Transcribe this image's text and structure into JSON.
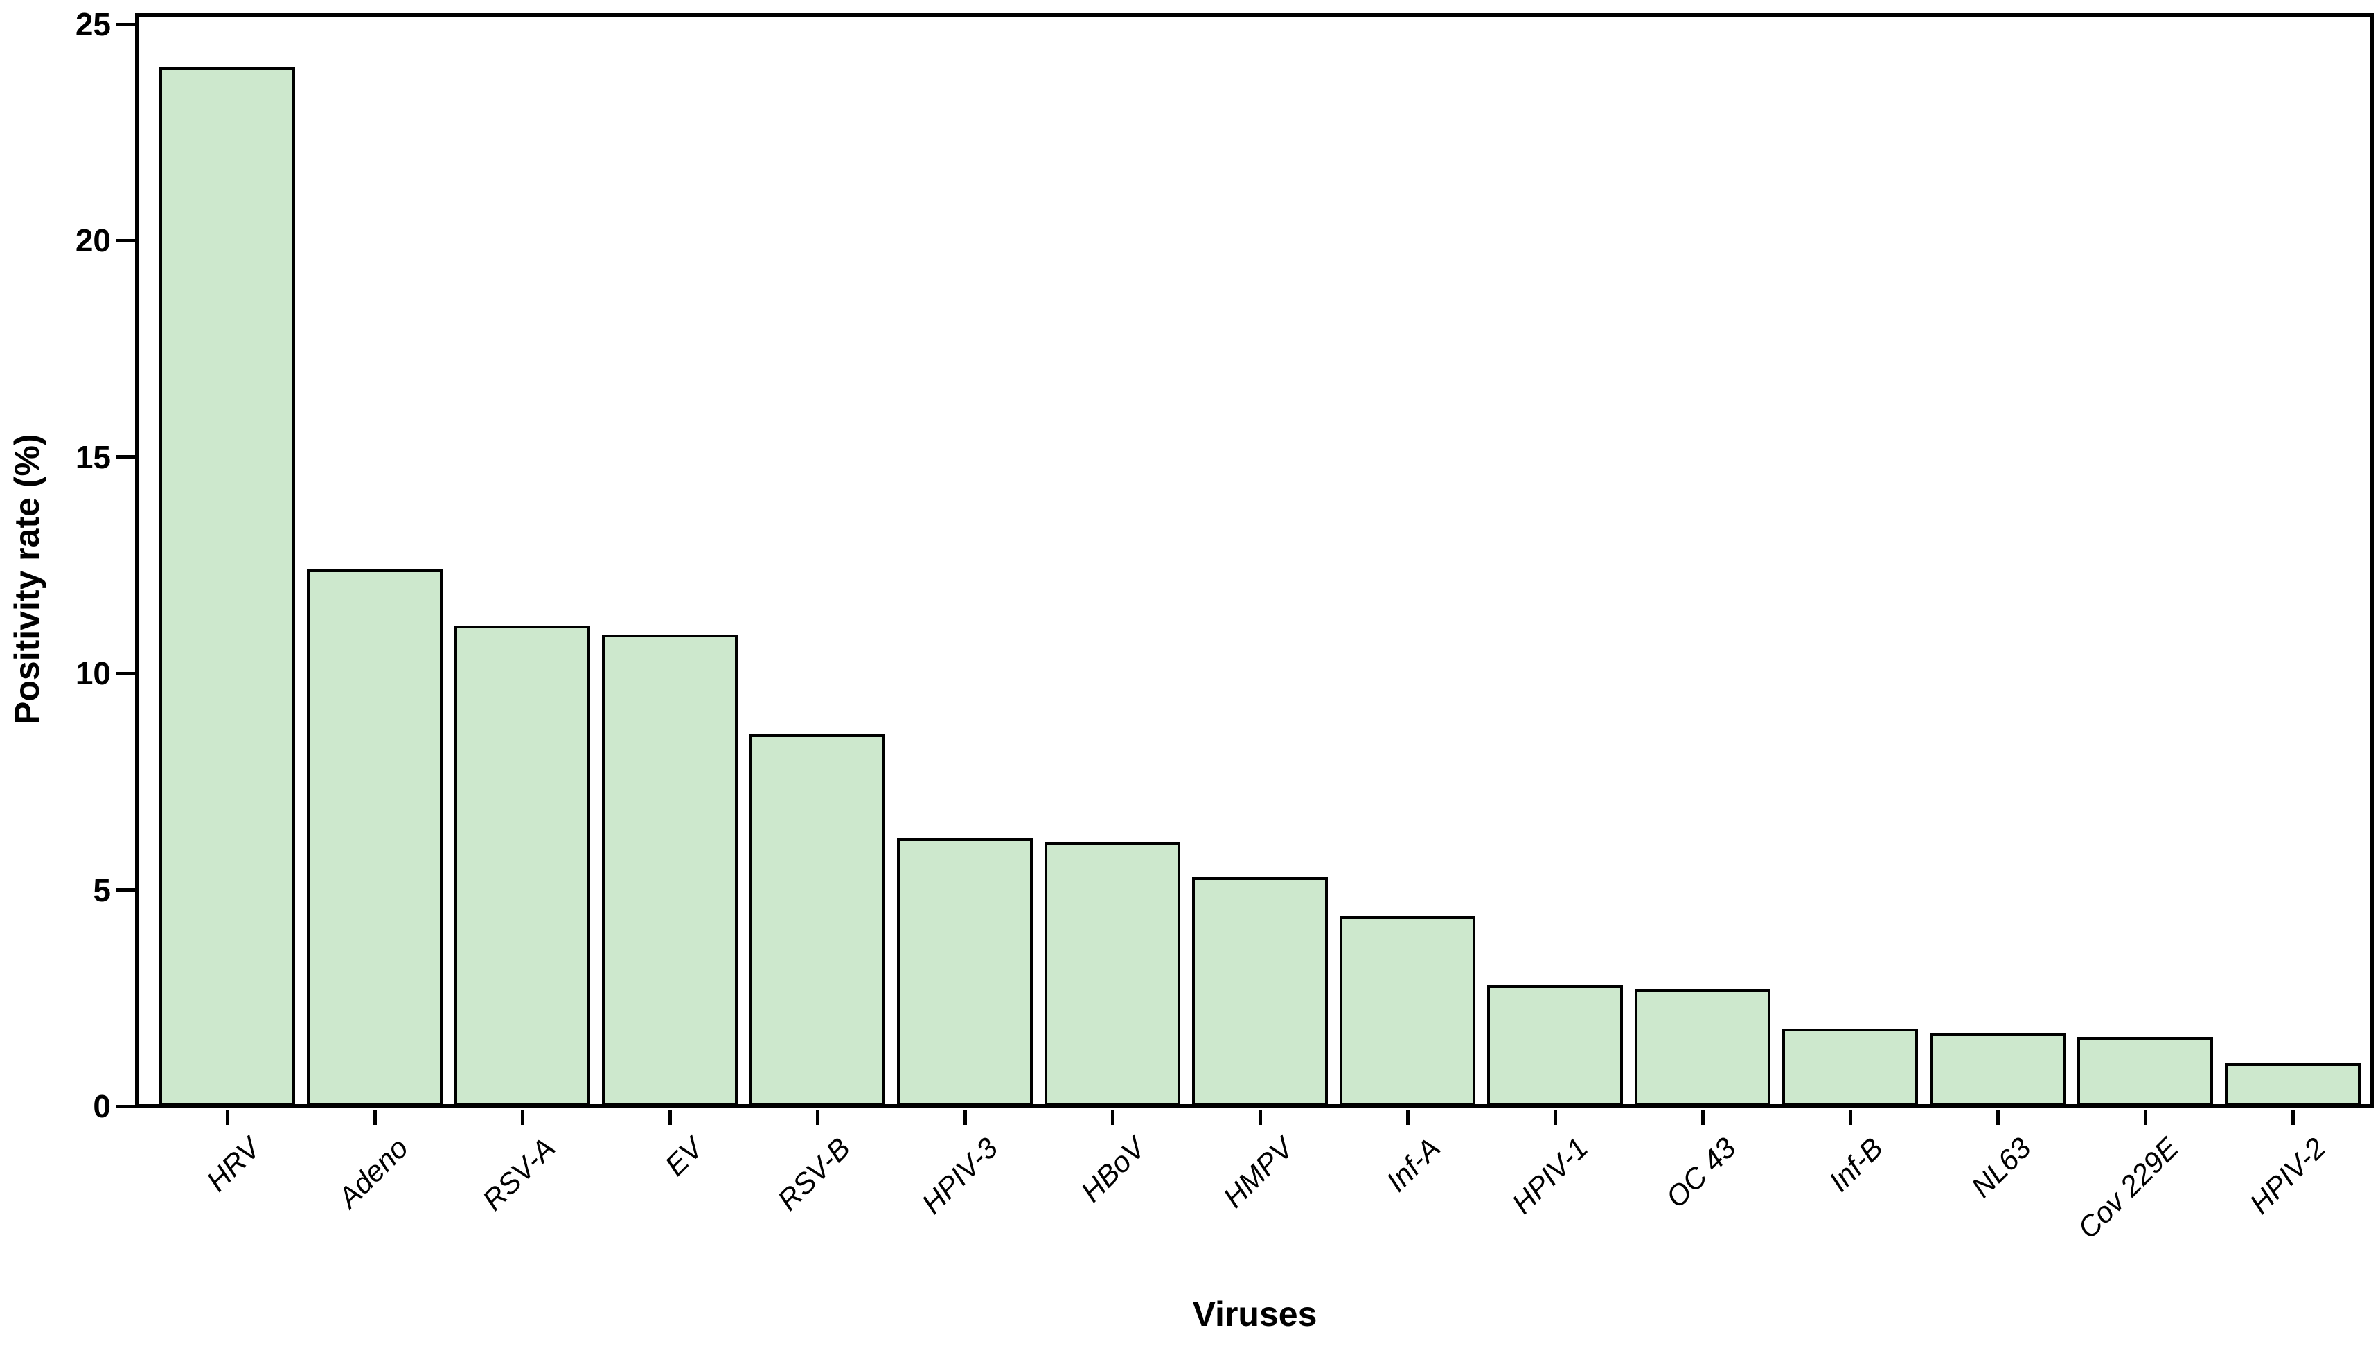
{
  "chart_data": {
    "type": "bar",
    "title": "",
    "xlabel": "Viruses",
    "ylabel": "Positivity rate (%)",
    "categories": [
      "HRV",
      "Adeno",
      "RSV-A",
      "EV",
      "RSV-B",
      "HPIV-3",
      "HBoV",
      "HMPV",
      "Inf-A",
      "HPIV-1",
      "OC 43",
      "Inf-B",
      "NL63",
      "Cov 229E",
      "HPIV-2"
    ],
    "values": [
      24.0,
      12.4,
      11.1,
      10.9,
      8.6,
      6.2,
      6.1,
      5.3,
      4.4,
      2.8,
      2.7,
      1.8,
      1.7,
      1.6,
      1.0
    ],
    "ylim": [
      0,
      25
    ],
    "y_ticks": [
      0,
      5,
      10,
      15,
      20,
      25
    ],
    "grid": false,
    "legend": null,
    "bar_fill_color": "#cde8cd",
    "bar_border_color": "#000000",
    "axis_color": "#000000"
  }
}
